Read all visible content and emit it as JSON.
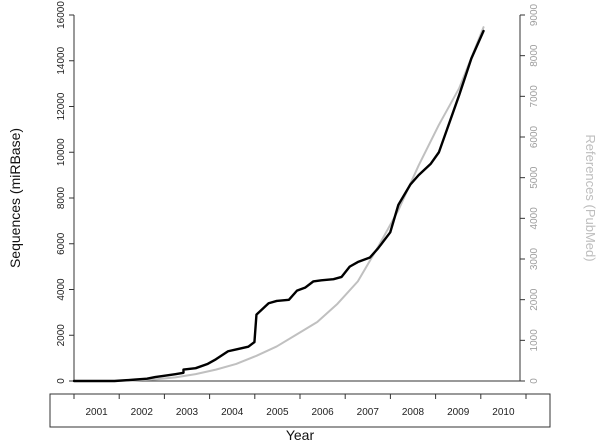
{
  "chart_data": {
    "type": "line",
    "title": "",
    "xlabel": "Year",
    "ylabel_left": "Sequences (miRBase)",
    "ylabel_right": "References (PubMed)",
    "x_categories": [
      "2001",
      "2002",
      "2003",
      "2004",
      "2005",
      "2006",
      "2007",
      "2008",
      "2009",
      "2010"
    ],
    "xlim": [
      2000.5,
      2011.5
    ],
    "ylim_left": [
      0,
      16000
    ],
    "ylim_right": [
      0,
      9000
    ],
    "yticks_left": [
      0,
      2000,
      4000,
      6000,
      8000,
      10000,
      12000,
      14000,
      16000
    ],
    "yticks_right": [
      0,
      1000,
      2000,
      3000,
      4000,
      5000,
      6000,
      7000,
      8000,
      9000
    ],
    "grid": false,
    "series": [
      {
        "axis": "left",
        "color": "#000000",
        "x": [
          2000.5,
          2001.5,
          2002.0,
          2002.3,
          2002.5,
          2002.7,
          2003.0,
          2003.2,
          2003.2,
          2003.5,
          2003.8,
          2004.0,
          2004.3,
          2004.5,
          2004.8,
          2004.95,
          2005.0,
          2005.3,
          2005.5,
          2005.8,
          2006.0,
          2006.2,
          2006.4,
          2006.6,
          2006.9,
          2007.1,
          2007.3,
          2007.5,
          2007.8,
          2008.0,
          2008.3,
          2008.5,
          2008.8,
          2009.0,
          2009.3,
          2009.5,
          2009.7,
          2010.0,
          2010.3,
          2010.6
        ],
        "y": [
          0,
          0,
          60,
          100,
          170,
          220,
          300,
          360,
          500,
          560,
          750,
          950,
          1300,
          1380,
          1500,
          1700,
          2900,
          3400,
          3500,
          3550,
          3950,
          4080,
          4350,
          4400,
          4450,
          4550,
          5000,
          5200,
          5400,
          5800,
          6500,
          7700,
          8600,
          9000,
          9500,
          10000,
          11000,
          12500,
          14100,
          15300
        ]
      },
      {
        "axis": "right",
        "color": "#c0c0c0",
        "x": [
          2000.5,
          2001.5,
          2002.0,
          2002.5,
          2003.0,
          2003.5,
          2004.0,
          2004.5,
          2005.0,
          2005.5,
          2006.0,
          2006.5,
          2007.0,
          2007.5,
          2008.0,
          2008.5,
          2009.0,
          2009.5,
          2010.0,
          2010.6
        ],
        "y": [
          0,
          0,
          15,
          40,
          90,
          170,
          280,
          420,
          620,
          850,
          1150,
          1450,
          1900,
          2450,
          3300,
          4200,
          5300,
          6300,
          7200,
          8700
        ]
      }
    ]
  }
}
